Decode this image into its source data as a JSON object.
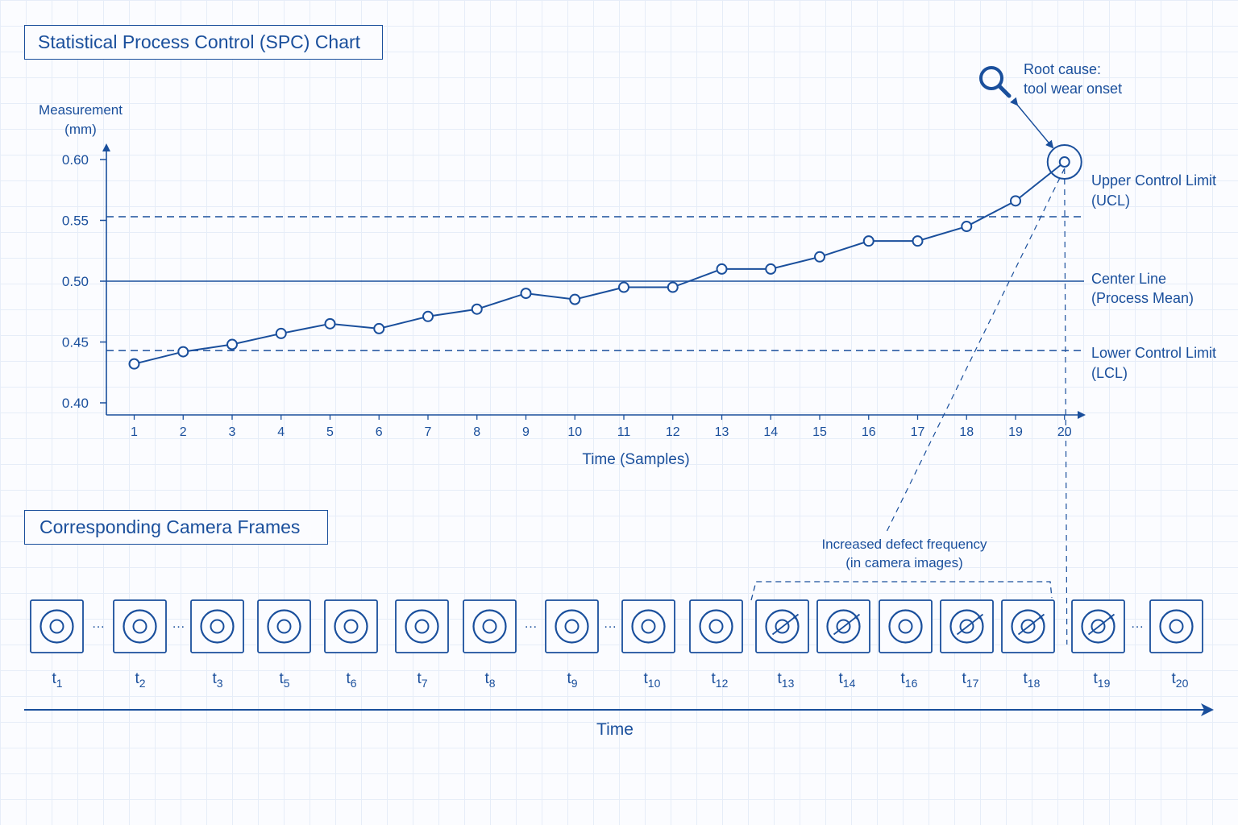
{
  "chart_title": "Statistical Process Control (SPC) Chart",
  "frames_title": "Corresponding Camera Frames",
  "chart_data": {
    "type": "line",
    "title": "Statistical Process Control (SPC) Chart",
    "xlabel": "Time (Samples)",
    "ylabel_lines": [
      "Measurement",
      "(mm)"
    ],
    "ylim": [
      0.4,
      0.6
    ],
    "yticks": [
      "0.60",
      "0.55",
      "0.50",
      "0.45",
      "0.40"
    ],
    "ytick_values": [
      0.6,
      0.55,
      0.5,
      0.45,
      0.4
    ],
    "x": [
      1,
      2,
      3,
      4,
      5,
      6,
      7,
      8,
      9,
      10,
      11,
      12,
      13,
      14,
      15,
      16,
      17,
      18,
      19,
      20
    ],
    "values": [
      0.432,
      0.442,
      0.448,
      0.457,
      0.465,
      0.461,
      0.471,
      0.477,
      0.49,
      0.485,
      0.495,
      0.495,
      0.51,
      0.51,
      0.52,
      0.533,
      0.533,
      0.545,
      0.566,
      0.598
    ],
    "ucl": 0.553,
    "center": 0.5,
    "lcl": 0.443,
    "grid": false,
    "line_labels": {
      "ucl": [
        "Upper Control Limit",
        "(UCL)"
      ],
      "center": [
        "Center Line",
        "(Process Mean)"
      ],
      "lcl": [
        "Lower Control Limit",
        "(LCL)"
      ]
    }
  },
  "root_cause_lines": [
    "Root cause:",
    "tool wear onset"
  ],
  "defect_note_lines": [
    "Increased defect frequency",
    "(in camera images)"
  ],
  "time_axis_label": "Time",
  "ellipsis": "···",
  "frames": [
    {
      "base": "t",
      "sub": "1",
      "defect": false,
      "gap_after": true
    },
    {
      "base": "t",
      "sub": "2",
      "defect": false,
      "gap_after": true
    },
    {
      "base": "t",
      "sub": "3",
      "defect": false,
      "gap_after": false
    },
    {
      "base": "t",
      "sub": "5",
      "defect": false,
      "gap_after": false
    },
    {
      "base": "t",
      "sub": "6",
      "defect": false,
      "gap_after": false
    },
    {
      "base": "t",
      "sub": "7",
      "defect": false,
      "gap_after": false
    },
    {
      "base": "t",
      "sub": "8",
      "defect": false,
      "gap_after": true
    },
    {
      "base": "t",
      "sub": "9",
      "defect": false,
      "gap_after": true
    },
    {
      "base": "t",
      "sub": "10",
      "defect": false,
      "gap_after": false
    },
    {
      "base": "t",
      "sub": "12",
      "defect": false,
      "gap_after": false
    },
    {
      "base": "t",
      "sub": "13",
      "defect": true,
      "gap_after": false
    },
    {
      "base": "t",
      "sub": "14",
      "defect": true,
      "gap_after": false
    },
    {
      "base": "t",
      "sub": "16",
      "defect": false,
      "gap_after": false
    },
    {
      "base": "t",
      "sub": "17",
      "defect": true,
      "gap_after": false
    },
    {
      "base": "t",
      "sub": "18",
      "defect": true,
      "gap_after": false
    },
    {
      "base": "t",
      "sub": "19",
      "defect": true,
      "gap_after": true
    },
    {
      "base": "t",
      "sub": "20",
      "defect": false,
      "gap_after": false
    }
  ],
  "colors": {
    "ink": "#1a4f9c",
    "background": "#fbfcff",
    "grid": "#e6edf8"
  },
  "icons": {
    "root_cause": "magnifier-icon"
  }
}
